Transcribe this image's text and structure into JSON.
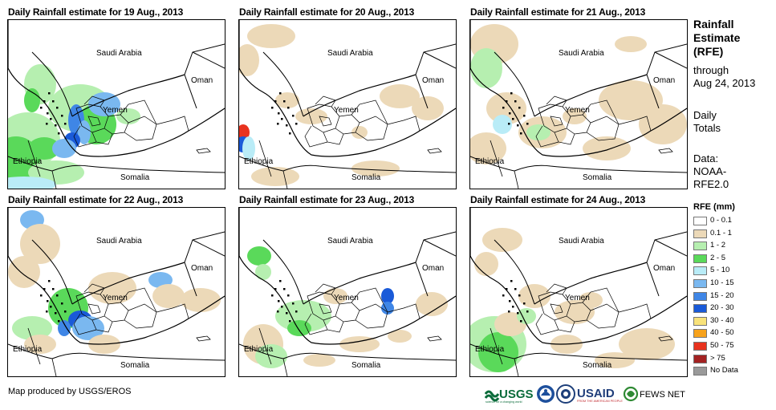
{
  "panels": [
    {
      "title": "Daily Rainfall estimate for 19 Aug., 2013"
    },
    {
      "title": "Daily Rainfall estimate for 20 Aug., 2013"
    },
    {
      "title": "Daily Rainfall estimate for 21 Aug., 2013"
    },
    {
      "title": "Daily Rainfall estimate for 22 Aug., 2013"
    },
    {
      "title": "Daily Rainfall estimate for 23 Aug., 2013"
    },
    {
      "title": "Daily Rainfall estimate for 24 Aug., 2013"
    }
  ],
  "map_labels": {
    "saudi": "Saudi Arabia",
    "oman": "Oman",
    "yemen": "Yemen",
    "ethiopia": "Ethiopia",
    "somalia": "Somalia"
  },
  "sidebar": {
    "title_line1": "Rainfall",
    "title_line2": "Estimate",
    "title_line3": "(RFE)",
    "through": "through",
    "date": "Aug 24, 2013",
    "daily": "Daily",
    "totals": "Totals",
    "data_label": "Data:",
    "source_line1": "NOAA-",
    "source_line2": "RFE2.0"
  },
  "legend": {
    "title": "RFE (mm)",
    "items": [
      {
        "label": "0 - 0.1",
        "color": "#ffffff"
      },
      {
        "label": "0.1 - 1",
        "color": "#ecd9b8"
      },
      {
        "label": "1 - 2",
        "color": "#b6efb0"
      },
      {
        "label": "2 - 5",
        "color": "#5ad95a"
      },
      {
        "label": "5 - 10",
        "color": "#b9ecf7"
      },
      {
        "label": "10 - 15",
        "color": "#7ab8f0"
      },
      {
        "label": "15 - 20",
        "color": "#3f86e6"
      },
      {
        "label": "20 - 30",
        "color": "#1a5ad8"
      },
      {
        "label": "30 - 40",
        "color": "#f8e27a"
      },
      {
        "label": "40 - 50",
        "color": "#f7a21b"
      },
      {
        "label": "50 - 75",
        "color": "#e8321e"
      },
      {
        "label": "> 75",
        "color": "#a32222"
      },
      {
        "label": "No Data",
        "color": "#9a9a9a"
      }
    ]
  },
  "credit": "Map produced by USGS/EROS",
  "logos": {
    "usgs": "USGS",
    "usgs_tag": "science for a changing world",
    "usaid": "USAID",
    "usaid_tag": "FROM THE AMERICAN PEOPLE",
    "fews": "FEWS NET"
  }
}
